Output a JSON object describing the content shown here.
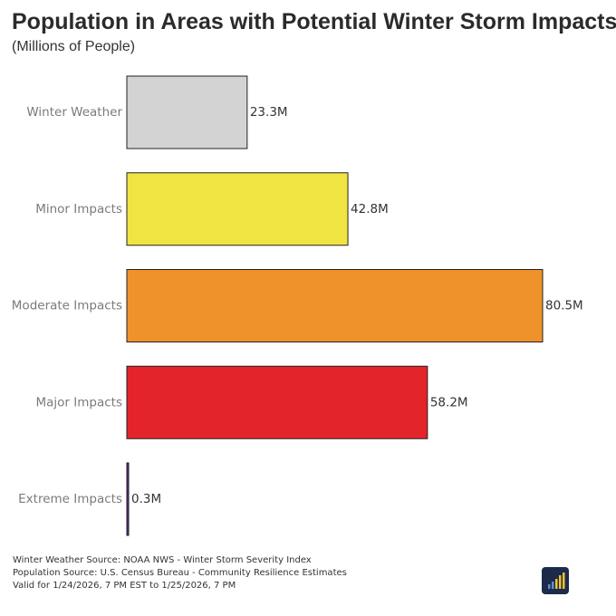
{
  "title": "Population in Areas with Potential Winter Storm Impacts",
  "subtitle": "(Millions of People)",
  "chart_data": {
    "type": "bar",
    "orientation": "horizontal",
    "categories": [
      "Winter Weather",
      "Minor Impacts",
      "Moderate Impacts",
      "Major Impacts",
      "Extreme Impacts"
    ],
    "values": [
      23.3,
      42.8,
      80.5,
      58.2,
      0.3
    ],
    "value_labels": [
      "23.3M",
      "42.8M",
      "80.5M",
      "58.2M",
      "0.3M"
    ],
    "colors": [
      "#d3d3d3",
      "#f0e442",
      "#f0922b",
      "#e3242b",
      "#5a2a8a"
    ],
    "xlim": [
      0,
      80.5
    ],
    "grid": false,
    "legend": "none"
  },
  "footer": {
    "line1": "Winter Weather Source: NOAA NWS - Winter Storm Severity Index",
    "line2": "Population Source: U.S. Census Bureau - Community Resilience Estimates",
    "line3": "Valid for 1/24/2026, 7 PM EST to  1/25/2026, 7 PM"
  },
  "logo": {
    "icon": "bar-chart-logo-icon",
    "color": "#1d2b4a",
    "accent": "#f2c230"
  }
}
